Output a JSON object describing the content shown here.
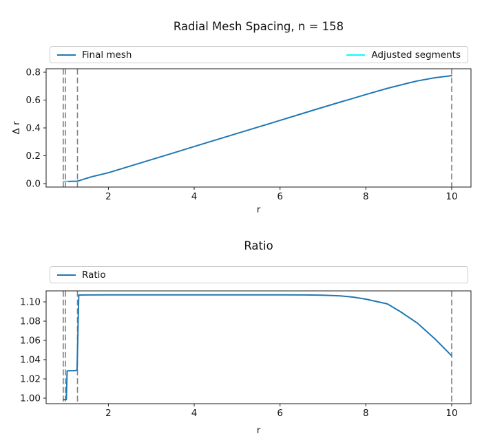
{
  "figure": {
    "background": "#ffffff"
  },
  "chart_data": [
    {
      "type": "line",
      "title": "Radial Mesh Spacing, n = 158",
      "xlabel": "r",
      "ylabel": "Δ r",
      "xlim": [
        0.55,
        10.45
      ],
      "ylim": [
        -0.0245,
        0.8245
      ],
      "xticks": [
        2,
        4,
        6,
        8,
        10
      ],
      "xtick_labels": [
        "2",
        "4",
        "6",
        "8",
        "10"
      ],
      "yticks": [
        0.0,
        0.2,
        0.4,
        0.6,
        0.8
      ],
      "ytick_labels": [
        "0.0",
        "0.2",
        "0.4",
        "0.6",
        "0.8"
      ],
      "grid": false,
      "legend": {
        "position": "above-axes",
        "mode": "expand",
        "entries": [
          "Final mesh",
          "Adjusted segments"
        ]
      },
      "vlines": {
        "x": [
          0.95,
          1.0,
          1.28,
          10.0
        ],
        "color": "#808080",
        "linestyle": "dashed"
      },
      "series": [
        {
          "name": "Final mesh",
          "color": "#1f77b4",
          "points": [
            [
              0.95,
              0.015
            ],
            [
              1.0,
              0.0153
            ],
            [
              1.05,
              0.0157
            ],
            [
              1.12,
              0.0162
            ],
            [
              1.2,
              0.0168
            ],
            [
              1.27,
              0.0175
            ],
            [
              1.32,
              0.0215
            ],
            [
              1.4,
              0.0295
            ],
            [
              1.6,
              0.0485
            ],
            [
              1.8,
              0.0635
            ],
            [
              2.0,
              0.078
            ],
            [
              2.5,
              0.125
            ],
            [
              3.0,
              0.172
            ],
            [
              3.5,
              0.219
            ],
            [
              4.0,
              0.266
            ],
            [
              4.5,
              0.313
            ],
            [
              5.0,
              0.36
            ],
            [
              5.5,
              0.407
            ],
            [
              6.0,
              0.454
            ],
            [
              6.5,
              0.501
            ],
            [
              7.0,
              0.548
            ],
            [
              7.4,
              0.585
            ],
            [
              7.7,
              0.612
            ],
            [
              8.0,
              0.64
            ],
            [
              8.5,
              0.684
            ],
            [
              9.0,
              0.723
            ],
            [
              9.2,
              0.737
            ],
            [
              9.6,
              0.76
            ],
            [
              10.0,
              0.775
            ]
          ]
        },
        {
          "name": "Adjusted segments",
          "color": "#00ffff",
          "points": [
            [
              0.95,
              0.015
            ],
            [
              1.05,
              0.0157
            ]
          ]
        }
      ]
    },
    {
      "type": "line",
      "title": "Ratio",
      "xlabel": "r",
      "ylabel": "",
      "xlim": [
        0.55,
        10.45
      ],
      "ylim": [
        0.9943,
        1.1114
      ],
      "xticks": [
        2,
        4,
        6,
        8,
        10
      ],
      "xtick_labels": [
        "2",
        "4",
        "6",
        "8",
        "10"
      ],
      "yticks": [
        1.0,
        1.02,
        1.04,
        1.06,
        1.08,
        1.1
      ],
      "ytick_labels": [
        "1.00",
        "1.02",
        "1.04",
        "1.06",
        "1.08",
        "1.10"
      ],
      "grid": false,
      "legend": {
        "position": "above-axes",
        "mode": "expand",
        "entries": [
          "Ratio"
        ]
      },
      "vlines": {
        "x": [
          0.95,
          1.0,
          1.28,
          10.0
        ],
        "color": "#808080",
        "linestyle": "dashed"
      },
      "series": [
        {
          "name": "Ratio",
          "color": "#1f77b4",
          "points": [
            [
              0.95,
              0.9985
            ],
            [
              1.0,
              0.9985
            ],
            [
              1.02,
              0.9985
            ],
            [
              1.04,
              1.0283
            ],
            [
              1.1,
              1.0285
            ],
            [
              1.2,
              1.0285
            ],
            [
              1.27,
              1.029
            ],
            [
              1.31,
              1.1071
            ],
            [
              1.5,
              1.1072
            ],
            [
              2.0,
              1.1073
            ],
            [
              3.0,
              1.1073
            ],
            [
              4.0,
              1.1073
            ],
            [
              5.0,
              1.1073
            ],
            [
              6.0,
              1.1073
            ],
            [
              6.6,
              1.1072
            ],
            [
              7.0,
              1.1069
            ],
            [
              7.4,
              1.1062
            ],
            [
              7.7,
              1.105
            ],
            [
              8.0,
              1.1028
            ],
            [
              8.5,
              1.0979
            ],
            [
              8.8,
              1.09
            ],
            [
              9.2,
              1.078
            ],
            [
              9.6,
              1.062
            ],
            [
              10.0,
              1.044
            ]
          ]
        }
      ]
    }
  ]
}
